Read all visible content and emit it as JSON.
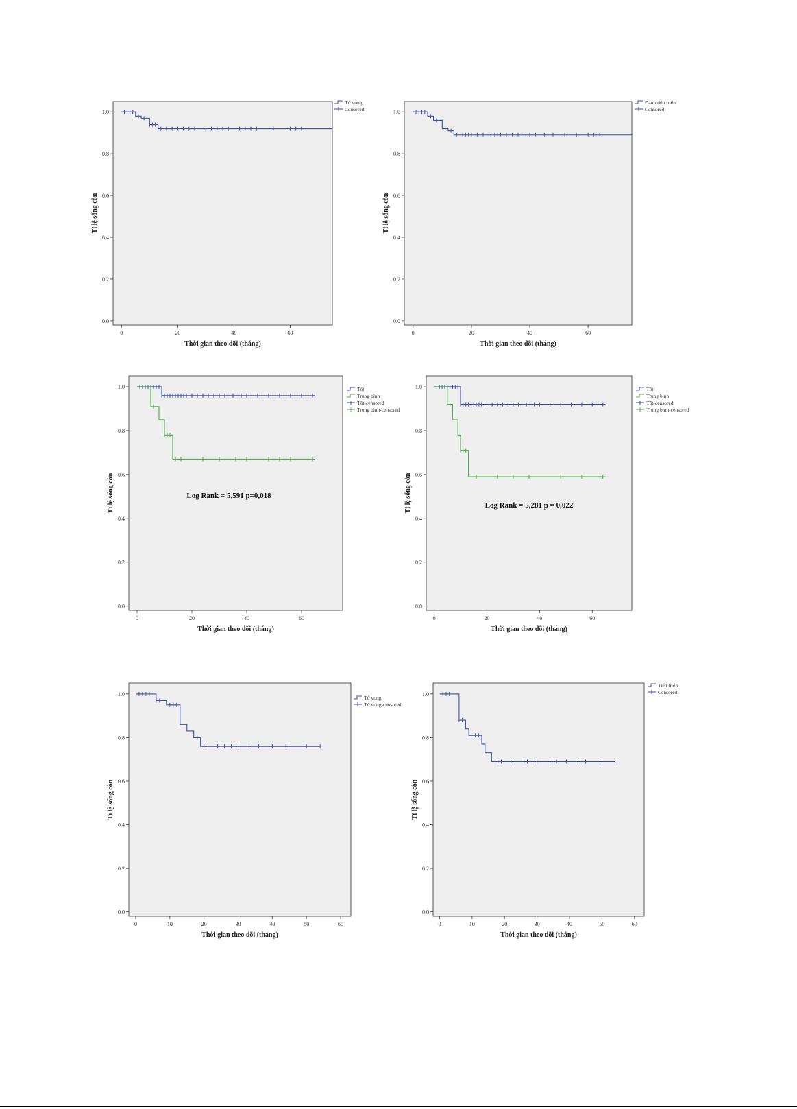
{
  "colors": {
    "blue": "#3b4ea5",
    "green": "#4fb04a"
  },
  "chart_data": [
    {
      "type": "line",
      "xlabel": "Thời gian theo dõi (tháng)",
      "ylabel": "Tỉ lệ sống còn",
      "xticks": [
        0,
        20,
        40,
        60
      ],
      "yticks": [
        "0.0",
        "0.2",
        "0.4",
        "0.6",
        "0.8",
        "1.0"
      ],
      "xlim": [
        -3,
        75
      ],
      "ylim": [
        -0.02,
        1.05
      ],
      "legend": [
        "Tử vong",
        "Censored"
      ],
      "legend_placement": "outside-right",
      "series": [
        {
          "color": "#3b4ea5",
          "steps": [
            [
              0,
              1.0
            ],
            [
              5,
              0.98
            ],
            [
              7,
              0.97
            ],
            [
              10,
              0.94
            ],
            [
              13,
              0.92
            ],
            [
              75,
              0.92
            ]
          ],
          "censored": [
            1,
            2,
            3,
            4,
            6,
            8,
            10,
            11,
            12,
            13,
            14,
            16,
            18,
            20,
            22,
            24,
            26,
            30,
            32,
            34,
            36,
            38,
            42,
            44,
            46,
            48,
            54,
            60,
            62,
            64
          ]
        }
      ]
    },
    {
      "type": "line",
      "xlabel": "Thời gian theo dõi (tháng)",
      "ylabel": "Tỉ lệ sống còn",
      "xticks": [
        0,
        20,
        40,
        60
      ],
      "yticks": [
        "0.0",
        "0.2",
        "0.4",
        "0.6",
        "0.8",
        "1.0"
      ],
      "xlim": [
        -3,
        75
      ],
      "ylim": [
        -0.02,
        1.05
      ],
      "legend": [
        "Đánh tiêu triển",
        "Censored"
      ],
      "legend_placement": "outside-right",
      "series": [
        {
          "color": "#3b4ea5",
          "steps": [
            [
              0,
              1.0
            ],
            [
              5,
              0.98
            ],
            [
              7,
              0.96
            ],
            [
              10,
              0.92
            ],
            [
              12,
              0.91
            ],
            [
              14,
              0.89
            ],
            [
              75,
              0.89
            ]
          ],
          "censored": [
            1,
            2,
            3,
            4,
            6,
            8,
            11,
            13,
            14,
            15,
            17,
            18,
            19,
            20,
            22,
            24,
            26,
            28,
            29,
            30,
            32,
            34,
            36,
            38,
            40,
            42,
            45,
            48,
            52,
            56,
            60,
            62,
            64
          ]
        }
      ]
    },
    {
      "type": "line",
      "xlabel": "Thời gian theo dõi (tháng)",
      "ylabel": "Tỉ lệ sống còn",
      "xticks": [
        0,
        20,
        40,
        60
      ],
      "yticks": [
        "0.0",
        "0.2",
        "0.4",
        "0.6",
        "0.8",
        "1.0"
      ],
      "xlim": [
        -3,
        75
      ],
      "ylim": [
        -0.02,
        1.05
      ],
      "legend": [
        "Tốt",
        "Trung bình",
        "Tốt-censored",
        "Trung bình-censored"
      ],
      "legend_placement": "outside-right",
      "annotation": "Log Rank = 5,591 p=0,018",
      "series": [
        {
          "color": "#3b4ea5",
          "steps": [
            [
              0,
              1.0
            ],
            [
              9,
              0.96
            ],
            [
              65,
              0.96
            ]
          ],
          "censored": [
            1,
            2,
            3,
            4,
            5,
            6,
            7,
            8,
            9,
            10,
            11,
            12,
            13,
            14,
            15,
            16,
            17,
            18,
            20,
            22,
            24,
            26,
            28,
            30,
            32,
            35,
            38,
            40,
            44,
            48,
            52,
            56,
            60,
            64
          ]
        },
        {
          "color": "#4fb04a",
          "steps": [
            [
              0,
              1.0
            ],
            [
              5,
              0.91
            ],
            [
              8,
              0.85
            ],
            [
              10,
              0.78
            ],
            [
              13,
              0.67
            ],
            [
              65,
              0.67
            ]
          ],
          "censored": [
            6,
            10,
            11,
            12,
            14,
            16,
            24,
            30,
            36,
            40,
            48,
            52,
            56,
            64
          ]
        }
      ]
    },
    {
      "type": "line",
      "xlabel": "Thời gian theo dõi (tháng)",
      "ylabel": "Tỉ lệ sống còn",
      "xticks": [
        0,
        20,
        40,
        60
      ],
      "yticks": [
        "0.0",
        "0.2",
        "0.4",
        "0.6",
        "0.8",
        "1.0"
      ],
      "xlim": [
        -3,
        75
      ],
      "ylim": [
        -0.02,
        1.05
      ],
      "legend": [
        "Tốt",
        "Trung bình",
        "Tốt-censored",
        "Trung bình-censored"
      ],
      "legend_placement": "outside-right",
      "annotation": "Log Rank = 5,281 p = 0,022",
      "series": [
        {
          "color": "#3b4ea5",
          "steps": [
            [
              0,
              1.0
            ],
            [
              10,
              0.92
            ],
            [
              65,
              0.92
            ]
          ],
          "censored": [
            1,
            2,
            3,
            4,
            5,
            6,
            7,
            8,
            9,
            10,
            11,
            12,
            13,
            14,
            15,
            16,
            17,
            18,
            20,
            22,
            24,
            26,
            28,
            30,
            32,
            35,
            38,
            40,
            44,
            48,
            52,
            56,
            60,
            64
          ]
        },
        {
          "color": "#4fb04a",
          "steps": [
            [
              0,
              1.0
            ],
            [
              5,
              0.92
            ],
            [
              7,
              0.85
            ],
            [
              9,
              0.78
            ],
            [
              10,
              0.71
            ],
            [
              13,
              0.59
            ],
            [
              65,
              0.59
            ]
          ],
          "censored": [
            6,
            10,
            11,
            12,
            16,
            24,
            30,
            36,
            48,
            56,
            64
          ]
        }
      ]
    },
    {
      "type": "line",
      "xlabel": "Thời gian theo dõi (tháng)",
      "ylabel": "Tỉ lệ sống còn",
      "xticks": [
        0,
        10,
        20,
        30,
        40,
        50,
        60
      ],
      "yticks": [
        "0.0",
        "0.2",
        "0.4",
        "0.6",
        "0.8",
        "1.0"
      ],
      "xlim": [
        -2,
        63
      ],
      "ylim": [
        -0.02,
        1.05
      ],
      "legend": [
        "Tử vong",
        "Tử vong-censored"
      ],
      "legend_placement": "outside-right",
      "series": [
        {
          "color": "#3b4ea5",
          "steps": [
            [
              0,
              1.0
            ],
            [
              6,
              0.97
            ],
            [
              9,
              0.95
            ],
            [
              13,
              0.86
            ],
            [
              15,
              0.83
            ],
            [
              17,
              0.8
            ],
            [
              19,
              0.76
            ],
            [
              54,
              0.76
            ]
          ],
          "censored": [
            1,
            2,
            3,
            4,
            6,
            7,
            10,
            11,
            12,
            18,
            20,
            24,
            26,
            28,
            30,
            34,
            36,
            40,
            44,
            50,
            54
          ]
        }
      ]
    },
    {
      "type": "line",
      "xlabel": "Thời gian theo dõi (tháng)",
      "ylabel": "Tỉ lệ sống còn",
      "xticks": [
        0,
        10,
        20,
        30,
        40,
        50,
        60
      ],
      "yticks": [
        "0.0",
        "0.2",
        "0.4",
        "0.6",
        "0.8",
        "1.0"
      ],
      "xlim": [
        -2,
        63
      ],
      "ylim": [
        -0.02,
        1.05
      ],
      "legend": [
        "Tiến triển",
        "Censored"
      ],
      "legend_placement": "outside-right",
      "series": [
        {
          "color": "#3b4ea5",
          "steps": [
            [
              0,
              1.0
            ],
            [
              6,
              0.88
            ],
            [
              8,
              0.84
            ],
            [
              9,
              0.81
            ],
            [
              13,
              0.77
            ],
            [
              14,
              0.73
            ],
            [
              16,
              0.69
            ],
            [
              54,
              0.69
            ]
          ],
          "censored": [
            1,
            2,
            3,
            6,
            7,
            11,
            12,
            18,
            19,
            22,
            26,
            27,
            30,
            34,
            36,
            39,
            42,
            45,
            50,
            54
          ]
        }
      ]
    }
  ]
}
